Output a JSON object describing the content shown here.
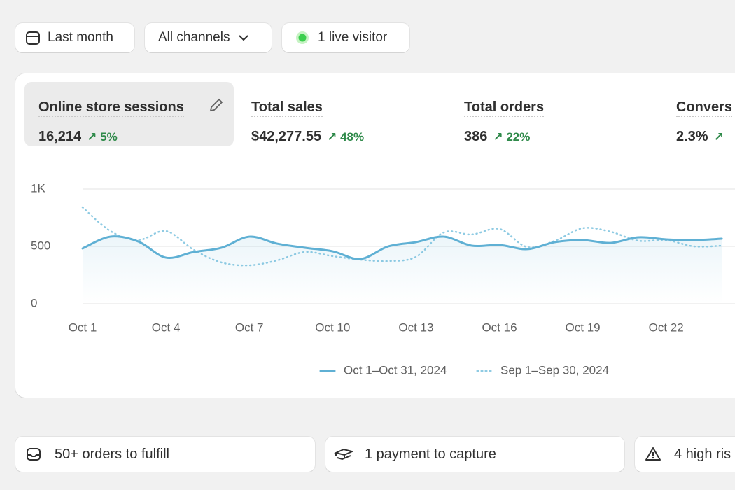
{
  "filters": {
    "date": "Last month",
    "channel": "All channels",
    "live": "1 live visitor"
  },
  "metrics": [
    {
      "label": "Online store sessions",
      "value": "16,214",
      "change": "5%"
    },
    {
      "label": "Total sales",
      "value": "$42,277.55",
      "change": "48%"
    },
    {
      "label": "Total orders",
      "value": "386",
      "change": "22%"
    },
    {
      "label": "Convers",
      "value": "2.3%"
    }
  ],
  "chart_data": {
    "type": "line",
    "categories": [
      "Oct 1",
      null,
      null,
      "Oct 4",
      null,
      null,
      "Oct 7",
      null,
      null,
      "Oct 10",
      null,
      null,
      "Oct 13",
      null,
      null,
      "Oct 16",
      null,
      null,
      "Oct 19",
      null,
      null,
      "Oct 22",
      null,
      null
    ],
    "series": [
      {
        "name": "Oct 1–Oct 31, 2024",
        "color": "#5fb0d4",
        "style": "solid",
        "values": [
          482,
          585,
          543,
          402,
          451,
          488,
          585,
          524,
          488,
          457,
          390,
          500,
          537,
          585,
          506,
          512,
          476,
          537,
          555,
          530,
          579,
          561,
          555,
          567
        ]
      },
      {
        "name": "Sep 1–Sep 30, 2024",
        "color": "#8fcbe3",
        "style": "dotted",
        "values": [
          841,
          634,
          555,
          634,
          470,
          360,
          335,
          378,
          451,
          415,
          384,
          372,
          409,
          622,
          604,
          652,
          494,
          549,
          659,
          628,
          549,
          555,
          500,
          506
        ]
      }
    ],
    "ylim": [
      0,
      1000
    ],
    "yticks": [
      0,
      500,
      {
        "value": 1000,
        "label": "1K"
      }
    ],
    "grid": true
  },
  "tasks": [
    "50+ orders to fulfill",
    "1 payment to capture",
    "4 high ris"
  ]
}
